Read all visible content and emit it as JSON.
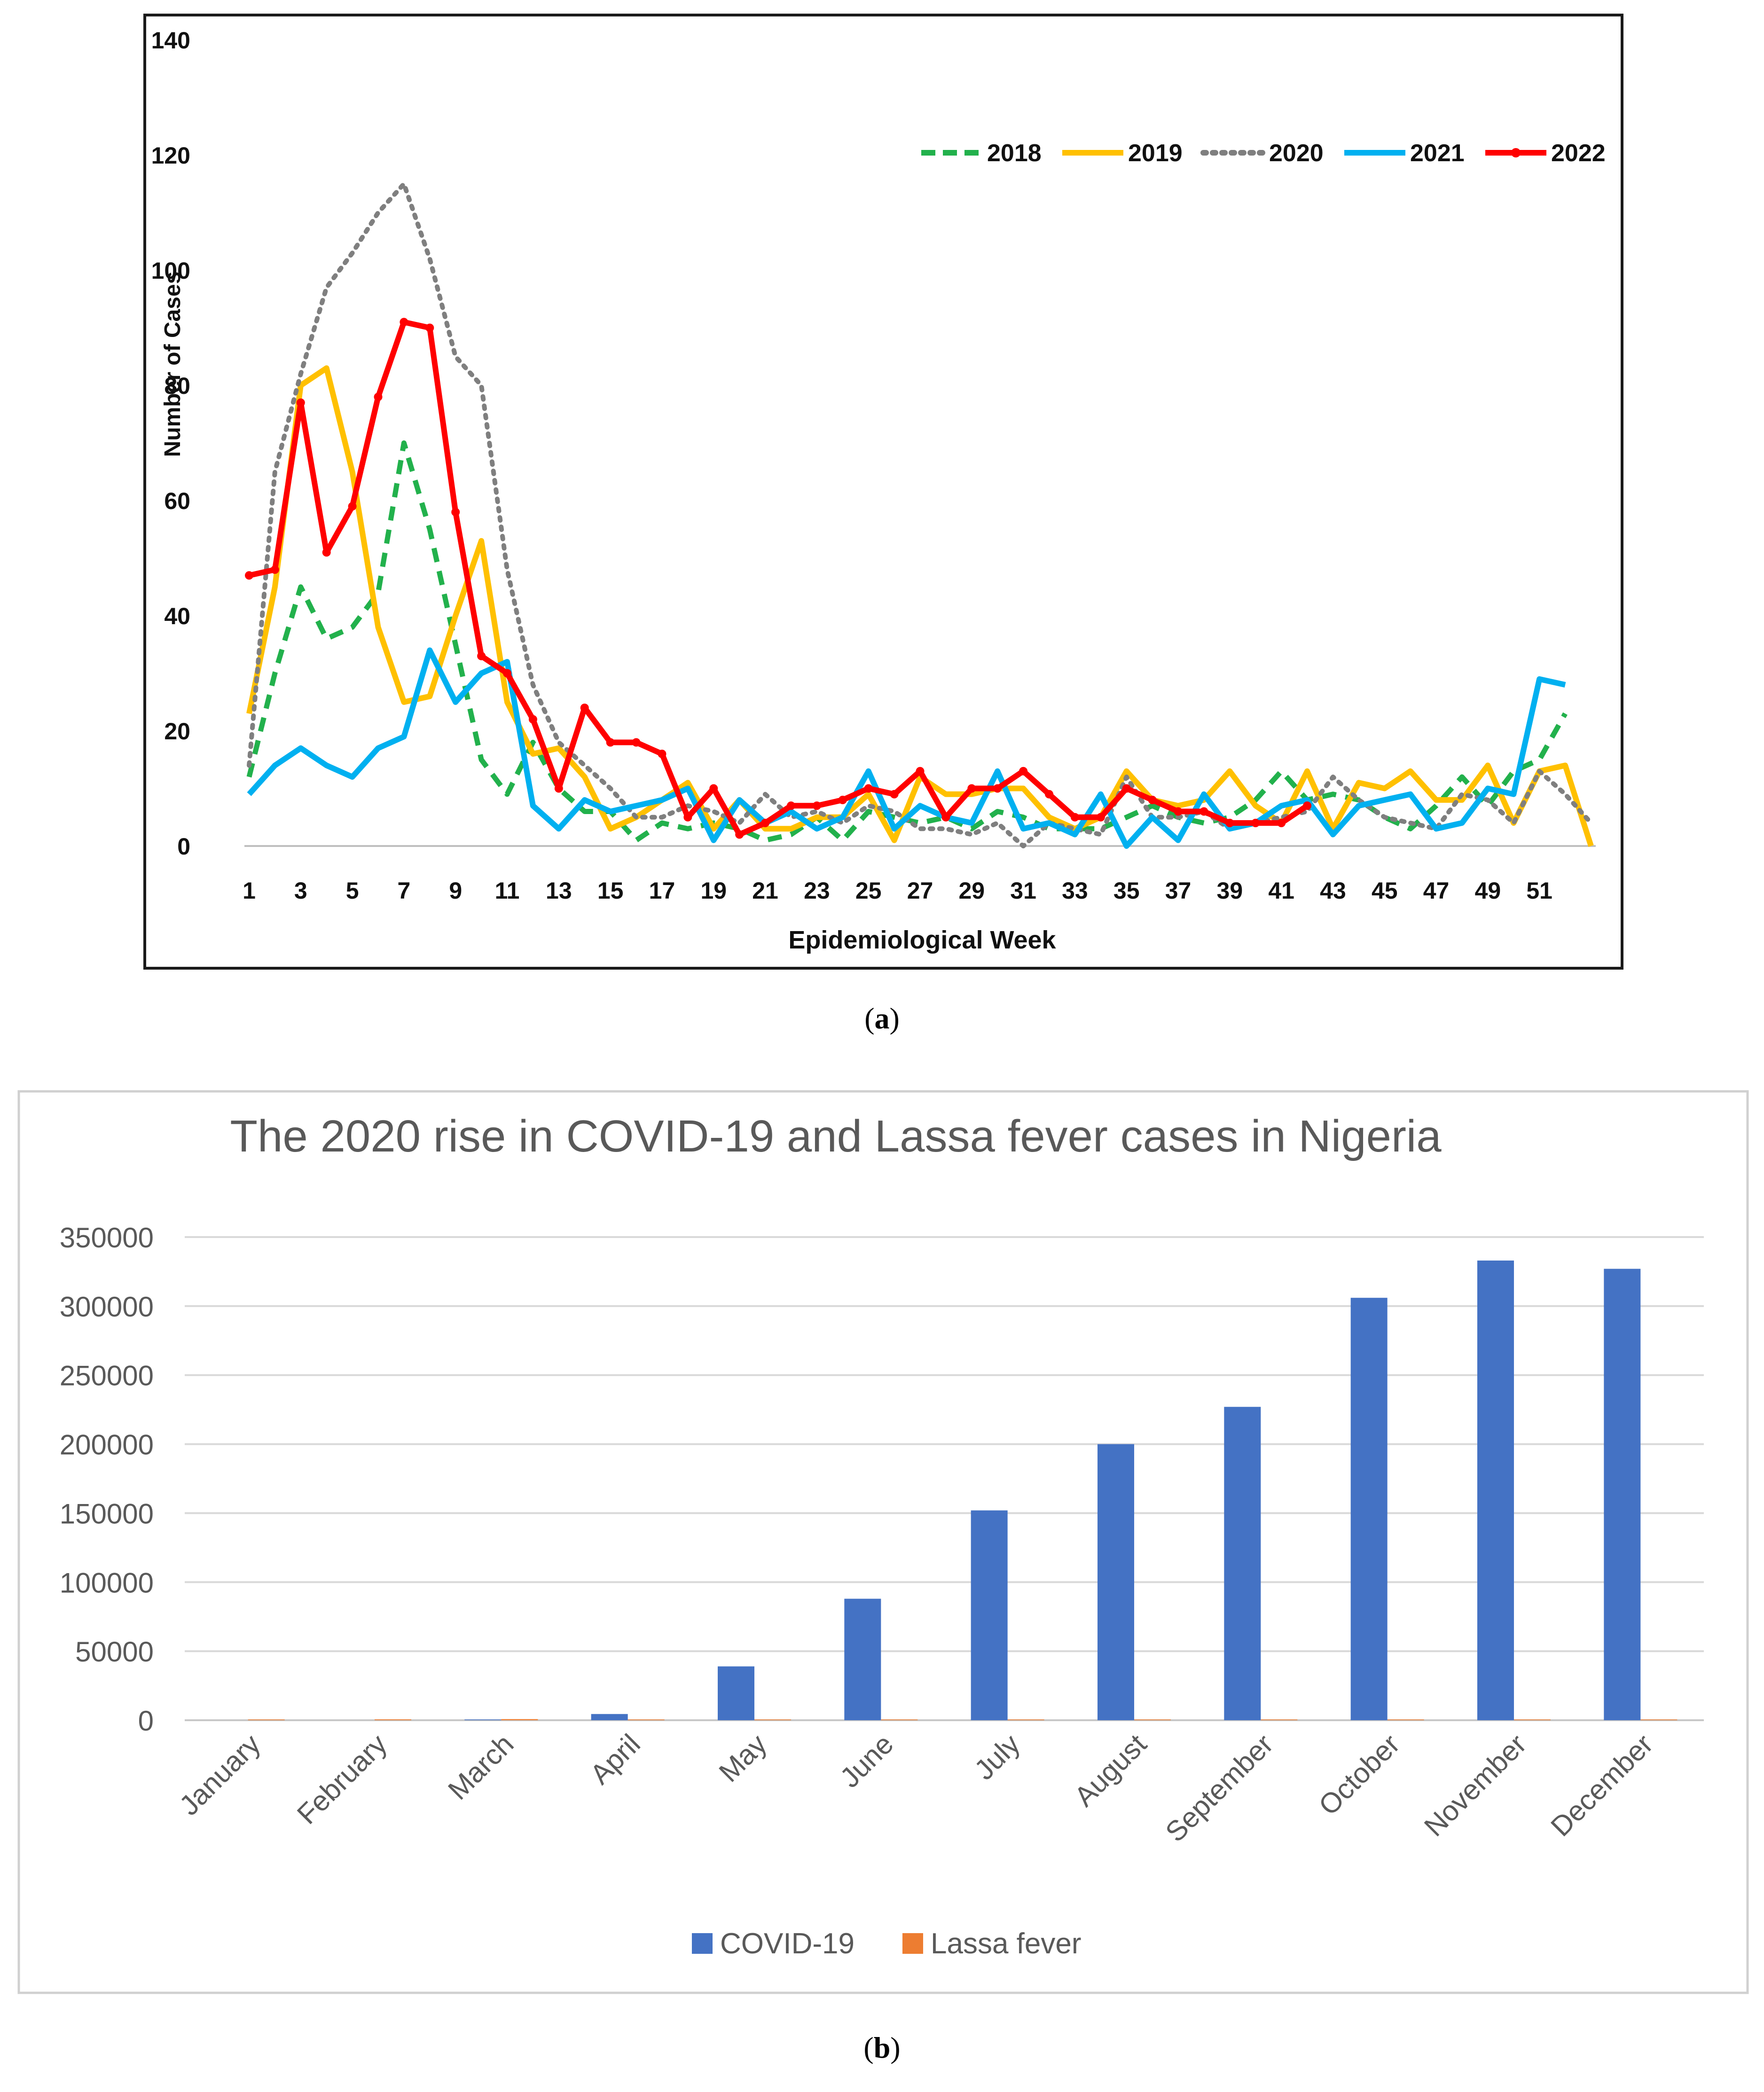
{
  "figure": {
    "panel_a_label": "a",
    "panel_b_label": "b"
  },
  "chart_data": [
    {
      "id": "panel-a",
      "type": "line",
      "title": "",
      "xlabel": "Epidemiological Week",
      "ylabel": "Number of Cases",
      "xlim": [
        1,
        53
      ],
      "ylim": [
        0,
        140
      ],
      "yticks": [
        0,
        20,
        40,
        60,
        80,
        100,
        120,
        140
      ],
      "xticks": [
        1,
        3,
        5,
        7,
        9,
        11,
        13,
        15,
        17,
        19,
        21,
        23,
        25,
        27,
        29,
        31,
        33,
        35,
        37,
        39,
        41,
        43,
        45,
        47,
        49,
        51
      ],
      "grid": false,
      "legend_position": "top-right",
      "series": [
        {
          "name": "2018",
          "color": "#22b14c",
          "style": "dashed",
          "x": [
            1,
            2,
            3,
            4,
            5,
            6,
            7,
            8,
            9,
            10,
            11,
            12,
            13,
            14,
            15,
            16,
            17,
            18,
            19,
            20,
            21,
            22,
            23,
            24,
            25,
            26,
            27,
            28,
            29,
            30,
            31,
            32,
            33,
            34,
            35,
            36,
            37,
            38,
            39,
            40,
            41,
            42,
            43,
            44,
            45,
            46,
            47,
            48,
            49,
            50,
            51,
            52
          ],
          "values": [
            12,
            30,
            45,
            36,
            38,
            44,
            70,
            55,
            35,
            15,
            9,
            18,
            10,
            6,
            6,
            1,
            4,
            3,
            4,
            3,
            1,
            2,
            5,
            1,
            6,
            5,
            4,
            5,
            3,
            6,
            5,
            3,
            3,
            3,
            5,
            7,
            5,
            4,
            5,
            8,
            13,
            8,
            9,
            8,
            5,
            3,
            7,
            12,
            7,
            13,
            15,
            23
          ]
        },
        {
          "name": "2019",
          "color": "#ffc000",
          "style": "solid",
          "x": [
            1,
            2,
            3,
            4,
            5,
            6,
            7,
            8,
            9,
            10,
            11,
            12,
            13,
            14,
            15,
            16,
            17,
            18,
            19,
            20,
            21,
            22,
            23,
            24,
            25,
            26,
            27,
            28,
            29,
            30,
            31,
            32,
            33,
            34,
            35,
            36,
            37,
            38,
            39,
            40,
            41,
            42,
            43,
            44,
            45,
            46,
            47,
            48,
            49,
            50,
            51,
            52,
            53
          ],
          "values": [
            23,
            45,
            80,
            83,
            65,
            38,
            25,
            26,
            40,
            53,
            25,
            16,
            17,
            12,
            3,
            5,
            8,
            11,
            3,
            8,
            3,
            3,
            5,
            5,
            9,
            1,
            12,
            9,
            9,
            10,
            10,
            5,
            3,
            5,
            13,
            8,
            7,
            8,
            13,
            7,
            4,
            13,
            3,
            11,
            10,
            13,
            8,
            8,
            14,
            4,
            13,
            14,
            0
          ]
        },
        {
          "name": "2020",
          "color": "#7f7f7f",
          "style": "dotted",
          "x": [
            1,
            2,
            3,
            4,
            5,
            6,
            7,
            8,
            9,
            10,
            11,
            12,
            13,
            14,
            15,
            16,
            17,
            18,
            19,
            20,
            21,
            22,
            23,
            24,
            25,
            26,
            27,
            28,
            29,
            30,
            31,
            32,
            33,
            34,
            35,
            36,
            37,
            38,
            39,
            40,
            41,
            42,
            43,
            44,
            45,
            46,
            47,
            48,
            49,
            50,
            51,
            52,
            53
          ],
          "values": [
            14,
            65,
            82,
            97,
            103,
            110,
            115,
            102,
            85,
            80,
            48,
            28,
            18,
            14,
            10,
            5,
            5,
            7,
            6,
            4,
            9,
            5,
            6,
            4,
            7,
            6,
            3,
            3,
            2,
            4,
            0,
            4,
            3,
            2,
            12,
            5,
            5,
            6,
            3,
            4,
            5,
            6,
            12,
            8,
            5,
            4,
            3,
            9,
            8,
            4,
            13,
            9,
            4
          ]
        },
        {
          "name": "2021",
          "color": "#00b0f0",
          "style": "solid",
          "x": [
            1,
            2,
            3,
            4,
            5,
            6,
            7,
            8,
            9,
            10,
            11,
            12,
            13,
            14,
            15,
            16,
            17,
            18,
            19,
            20,
            21,
            22,
            23,
            24,
            25,
            26,
            27,
            28,
            29,
            30,
            31,
            32,
            33,
            34,
            35,
            36,
            37,
            38,
            39,
            40,
            41,
            42,
            43,
            44,
            45,
            46,
            47,
            48,
            49,
            50,
            51,
            52
          ],
          "values": [
            9,
            14,
            17,
            14,
            12,
            17,
            19,
            34,
            25,
            30,
            32,
            7,
            3,
            8,
            6,
            7,
            8,
            10,
            1,
            8,
            4,
            6,
            3,
            5,
            13,
            3,
            7,
            5,
            4,
            13,
            3,
            4,
            2,
            9,
            0,
            5,
            1,
            9,
            3,
            4,
            7,
            8,
            2,
            7,
            8,
            9,
            3,
            4,
            10,
            9,
            29,
            28
          ]
        },
        {
          "name": "2022",
          "color": "#ff0000",
          "style": "solid-markers",
          "x": [
            1,
            2,
            3,
            4,
            5,
            6,
            7,
            8,
            9,
            10,
            11,
            12,
            13,
            14,
            15,
            16,
            17,
            18,
            19,
            20,
            21,
            22,
            23,
            24,
            25,
            26,
            27,
            28,
            29,
            30,
            31,
            32,
            33,
            34,
            35,
            36,
            37,
            38,
            39,
            40,
            41,
            42
          ],
          "values": [
            47,
            48,
            77,
            51,
            59,
            78,
            91,
            90,
            58,
            33,
            30,
            22,
            10,
            24,
            18,
            18,
            16,
            5,
            10,
            2,
            4,
            7,
            7,
            8,
            10,
            9,
            13,
            5,
            10,
            10,
            13,
            9,
            5,
            5,
            10,
            8,
            6,
            6,
            4,
            4,
            4,
            7
          ]
        }
      ]
    },
    {
      "id": "panel-b",
      "type": "bar",
      "title": "The 2020 rise in COVID-19 and Lassa fever cases in Nigeria",
      "xlabel": "",
      "ylabel": "",
      "categories": [
        "January",
        "February",
        "March",
        "April",
        "May",
        "June",
        "July",
        "August",
        "September",
        "October",
        "November",
        "December"
      ],
      "ylim": [
        0,
        350000
      ],
      "yticks": [
        0,
        50000,
        100000,
        150000,
        200000,
        250000,
        300000,
        350000
      ],
      "grid": true,
      "legend_position": "bottom",
      "series": [
        {
          "name": "COVID-19",
          "color": "#4472c4",
          "values": [
            0,
            0,
            139,
            4500,
            39000,
            88000,
            152000,
            200000,
            227000,
            306000,
            333000,
            327000
          ]
        },
        {
          "name": "Lassa fever",
          "color": "#ed7d31",
          "values": [
            250,
            600,
            800,
            400,
            150,
            100,
            80,
            80,
            60,
            60,
            80,
            150
          ]
        }
      ]
    }
  ]
}
